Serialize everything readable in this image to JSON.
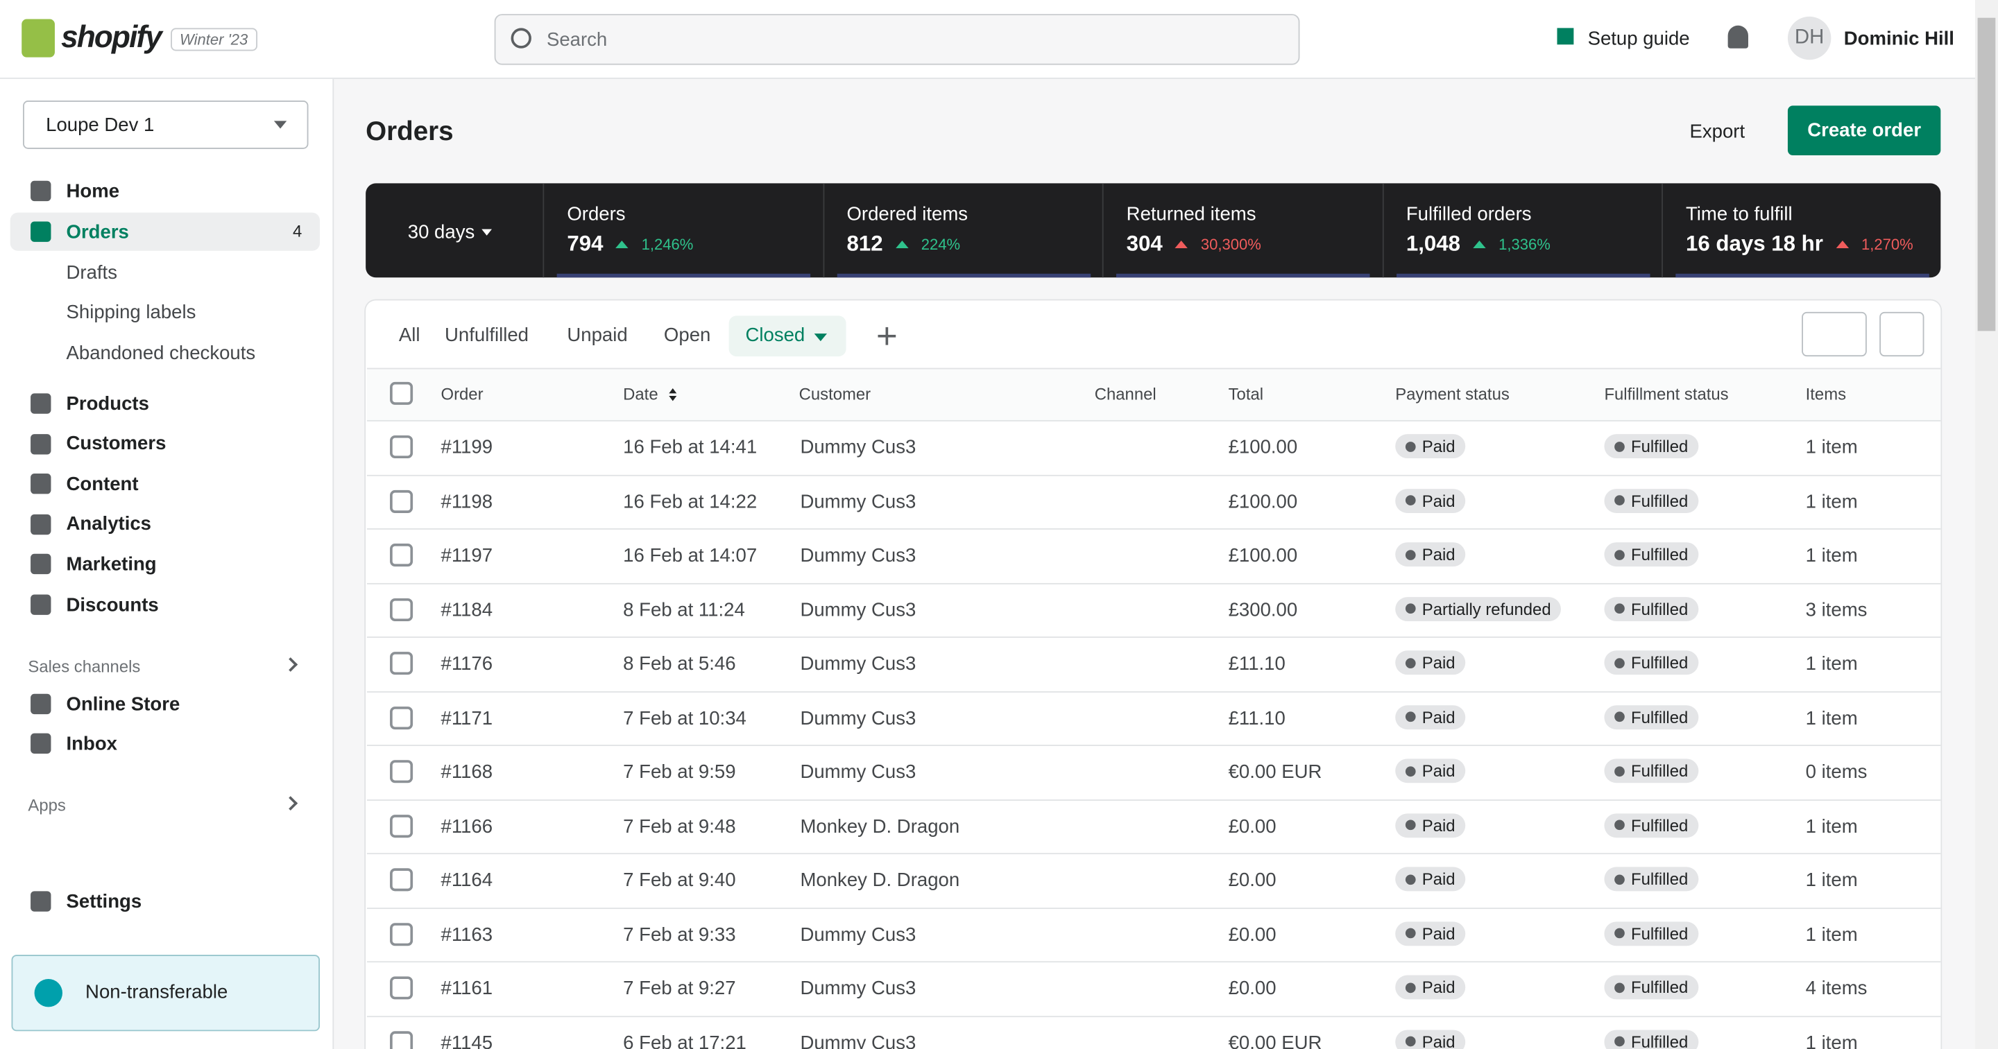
{
  "header": {
    "logo": "shopify",
    "edition": "Winter '23",
    "search_placeholder": "Search",
    "setup_guide": "Setup guide",
    "user_initials": "DH",
    "user_name": "Dominic Hill"
  },
  "sidebar": {
    "store": "Loupe Dev 1",
    "main_nav": [
      {
        "label": "Home"
      },
      {
        "label": "Orders",
        "badge": 4
      }
    ],
    "orders_subnav": [
      "Drafts",
      "Shipping labels",
      "Abandoned checkouts"
    ],
    "more_nav": [
      "Products",
      "Customers",
      "Content",
      "Analytics",
      "Marketing",
      "Discounts"
    ],
    "sales_channels_title": "Sales channels",
    "sales_channels": [
      "Online Store",
      "Inbox"
    ],
    "apps_title": "Apps",
    "settings": "Settings",
    "notice": "Non-transferable"
  },
  "page": {
    "title": "Orders",
    "export": "Export",
    "create": "Create order"
  },
  "stats": {
    "period": "30 days",
    "items": [
      {
        "label": "Orders",
        "value": "794",
        "change": "1,246%",
        "trend": "up-good"
      },
      {
        "label": "Ordered items",
        "value": "812",
        "change": "224%",
        "trend": "up-good"
      },
      {
        "label": "Returned items",
        "value": "304",
        "change": "30,300%",
        "trend": "up-bad"
      },
      {
        "label": "Fulfilled orders",
        "value": "1,048",
        "change": "1,336%",
        "trend": "up-good"
      },
      {
        "label": "Time to fulfill",
        "value": "16 days 18 hr",
        "change": "1,270%",
        "trend": "up-bad"
      }
    ]
  },
  "tabs": {
    "items": [
      "All",
      "Unfulfilled",
      "Unpaid",
      "Open",
      "Closed"
    ],
    "selected": 4
  },
  "table": {
    "columns": [
      "Order",
      "Date",
      "Customer",
      "Channel",
      "Total",
      "Payment status",
      "Fulfillment status",
      "Items"
    ],
    "rows": [
      [
        "#1199",
        "16 Feb at 14:41",
        "Dummy Cus3",
        "",
        "£100.00",
        "Paid",
        "Fulfilled",
        "1 item"
      ],
      [
        "#1198",
        "16 Feb at 14:22",
        "Dummy Cus3",
        "",
        "£100.00",
        "Paid",
        "Fulfilled",
        "1 item"
      ],
      [
        "#1197",
        "16 Feb at 14:07",
        "Dummy Cus3",
        "",
        "£100.00",
        "Paid",
        "Fulfilled",
        "1 item"
      ],
      [
        "#1184",
        "8 Feb at 11:24",
        "Dummy Cus3",
        "",
        "£300.00",
        "Partially refunded",
        "Fulfilled",
        "3 items"
      ],
      [
        "#1176",
        "8 Feb at 5:46",
        "Dummy Cus3",
        "",
        "£11.10",
        "Paid",
        "Fulfilled",
        "1 item"
      ],
      [
        "#1171",
        "7 Feb at 10:34",
        "Dummy Cus3",
        "",
        "£11.10",
        "Paid",
        "Fulfilled",
        "1 item"
      ],
      [
        "#1168",
        "7 Feb at 9:59",
        "Dummy Cus3",
        "",
        "€0.00 EUR",
        "Paid",
        "Fulfilled",
        "0 items"
      ],
      [
        "#1166",
        "7 Feb at 9:48",
        "Monkey D. Dragon",
        "",
        "£0.00",
        "Paid",
        "Fulfilled",
        "1 item"
      ],
      [
        "#1164",
        "7 Feb at 9:40",
        "Monkey D. Dragon",
        "",
        "£0.00",
        "Paid",
        "Fulfilled",
        "1 item"
      ],
      [
        "#1163",
        "7 Feb at 9:33",
        "Dummy Cus3",
        "",
        "£0.00",
        "Paid",
        "Fulfilled",
        "1 item"
      ],
      [
        "#1161",
        "7 Feb at 9:27",
        "Dummy Cus3",
        "",
        "£0.00",
        "Paid",
        "Fulfilled",
        "4 items"
      ],
      [
        "#1145",
        "6 Feb at 17:21",
        "Dummy Cus3",
        "",
        "€0.00 EUR",
        "Paid",
        "Fulfilled",
        "1 item"
      ]
    ]
  }
}
